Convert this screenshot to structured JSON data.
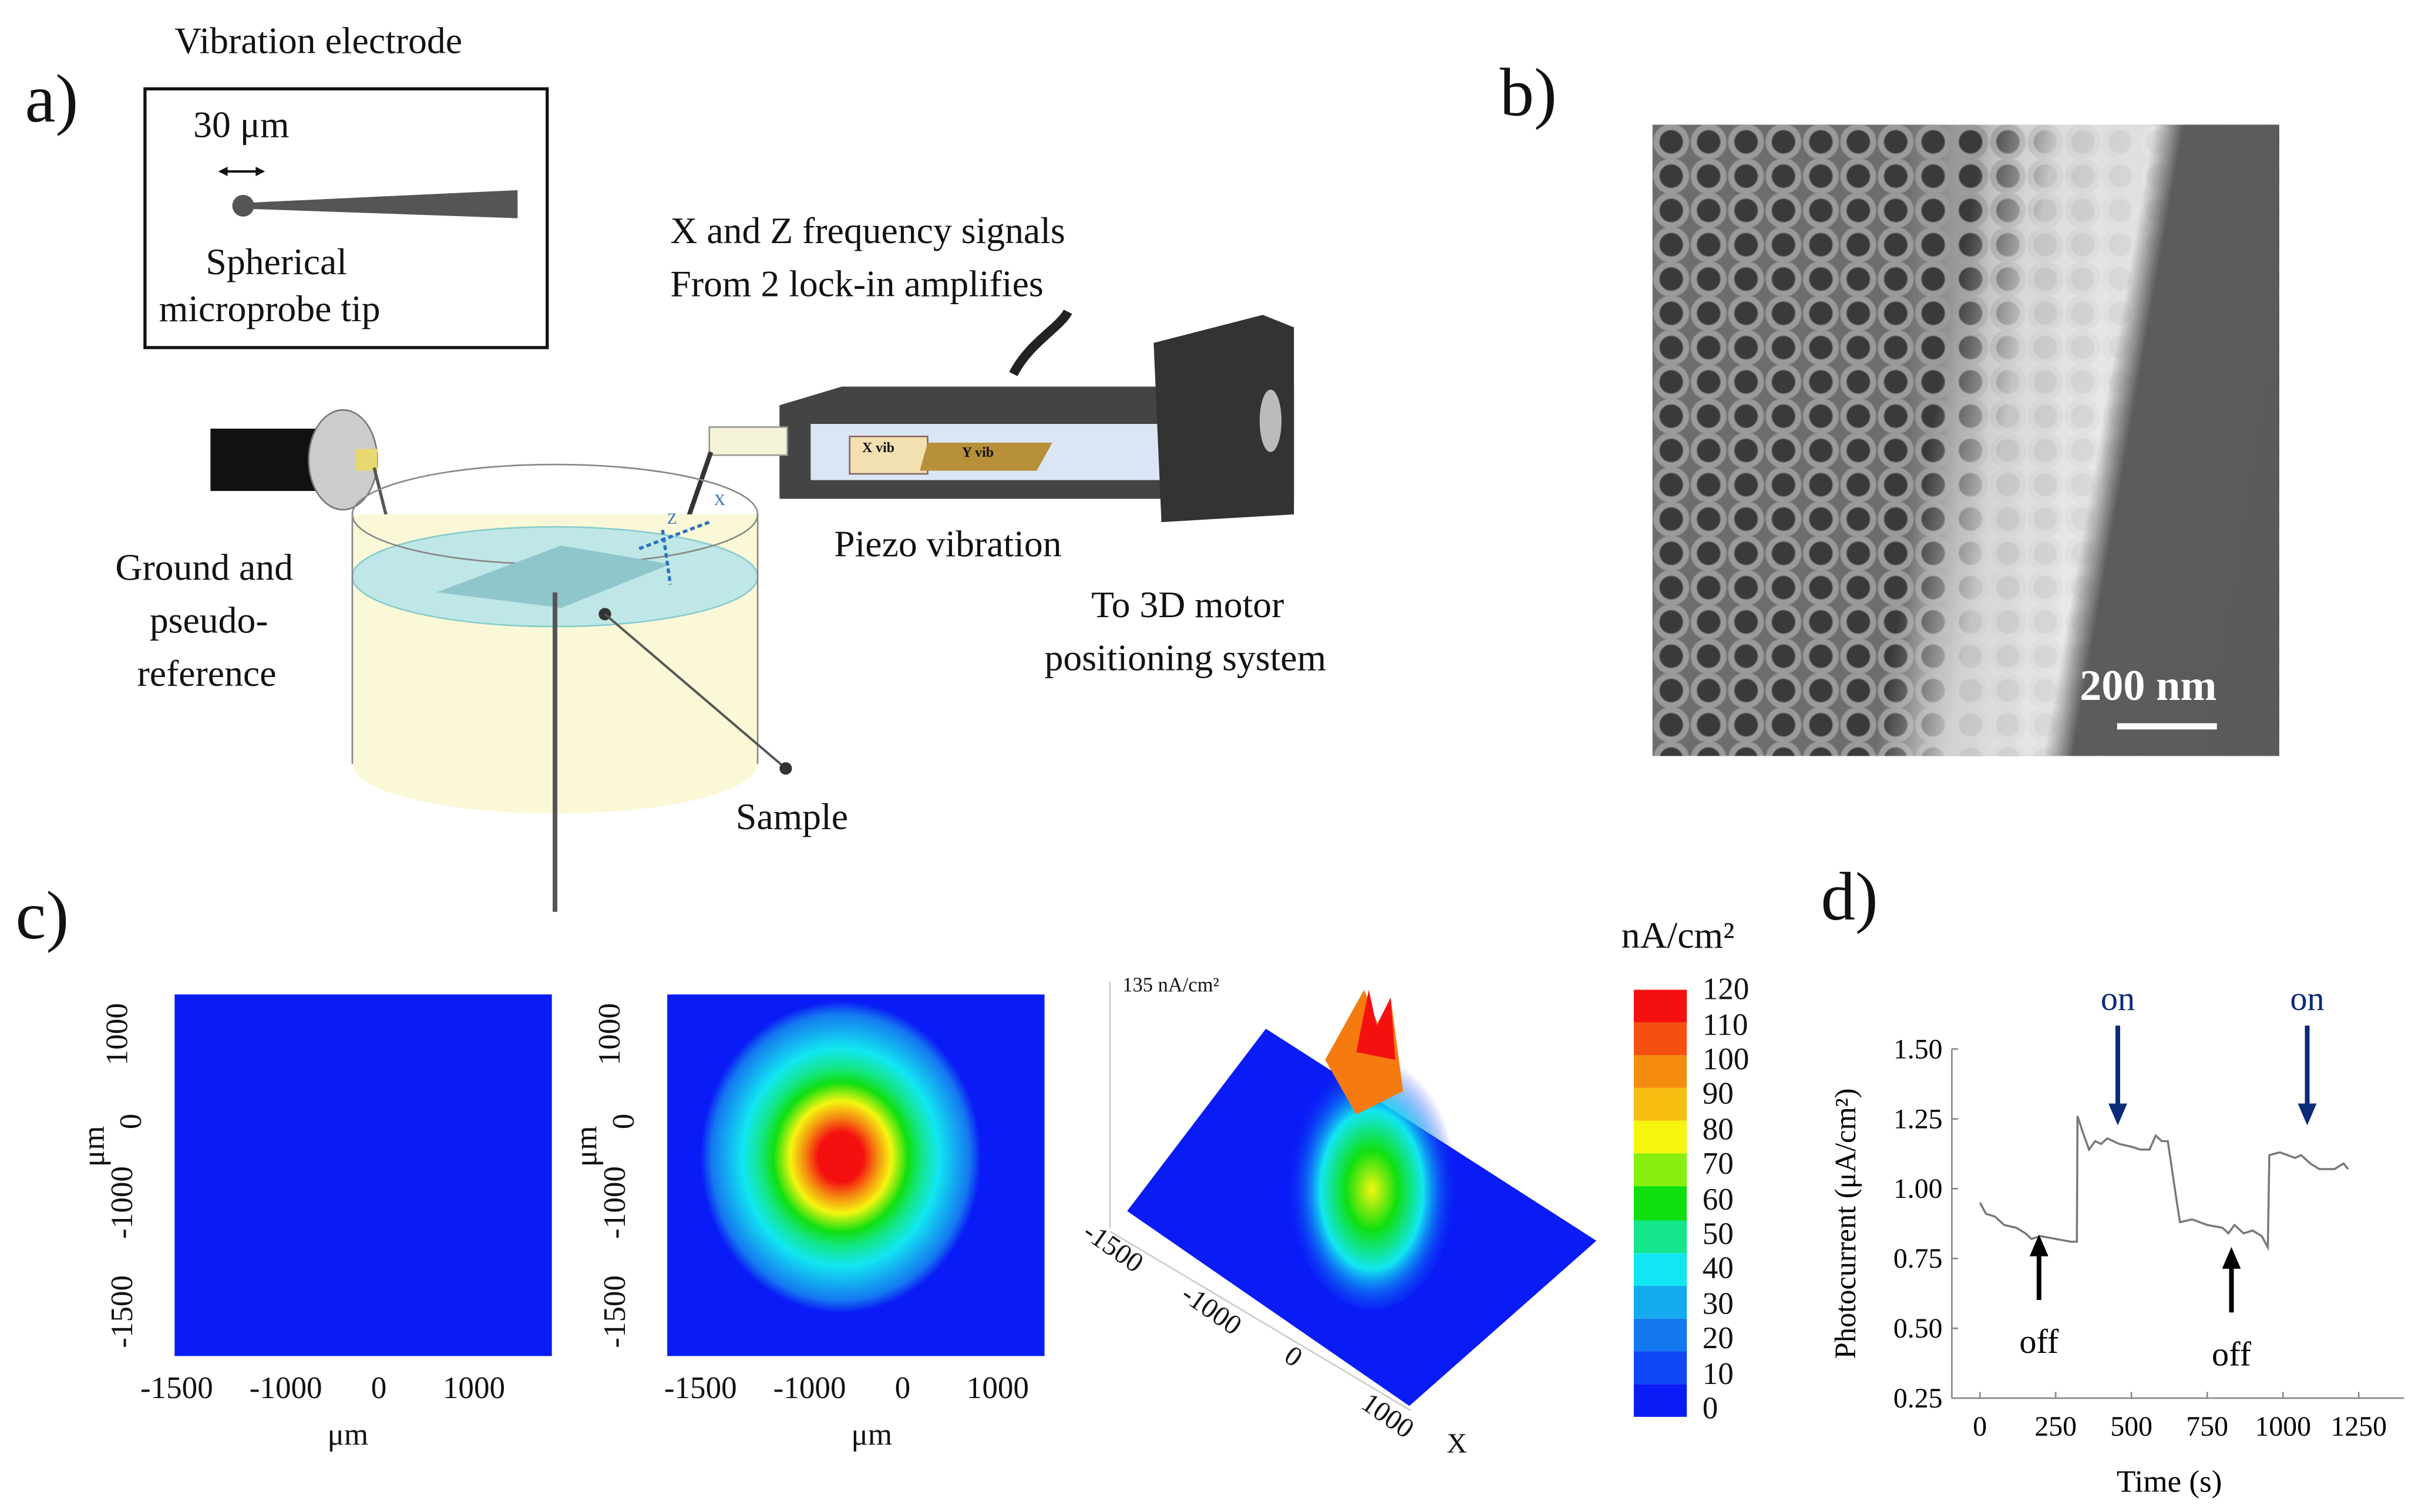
{
  "panel_a": {
    "letter": "a)",
    "inset_title": "Vibration electrode",
    "inset_scale": "30 μm",
    "inset_tip": "Spherical\nmicroprobe tip",
    "inset_tip_1": "Spherical",
    "inset_tip_2": "microprobe tip",
    "signals_1": "X and Z frequency signals",
    "signals_2": "From 2 lock-in amplifies",
    "x_vib": "X vib",
    "y_vib": "Y vib",
    "piezo": "Piezo vibration",
    "motor_1": "To 3D motor",
    "motor_2": "positioning system",
    "ground_1": "Ground and",
    "ground_2": "pseudo-",
    "ground_3": "reference",
    "sample": "Sample",
    "axis_z": "Z",
    "axis_x": "X"
  },
  "panel_b": {
    "letter": "b)",
    "scale_bar": "200 nm"
  },
  "panel_c": {
    "letter": "c)",
    "map_ticks_x": [
      "-1500",
      "-1000",
      "0",
      "1000"
    ],
    "map_ticks_y": [
      "1000",
      "0",
      "-1000",
      "-1500"
    ],
    "axis_unit": "μm",
    "surface_label": "135 nA/cm²",
    "surface_ticks": [
      "-1500",
      "-1000",
      "0",
      "1000"
    ],
    "surface_axis": "X",
    "colorbar_title": "nA/cm²",
    "colorbar_ticks": [
      "0",
      "10",
      "20",
      "30",
      "40",
      "50",
      "60",
      "70",
      "80",
      "90",
      "100",
      "110",
      "120"
    ],
    "colorbar_colors": [
      "#0a1cf5",
      "#0f47f5",
      "#1478f0",
      "#14aaf0",
      "#12e6f2",
      "#14e68c",
      "#10e010",
      "#88f010",
      "#f5f510",
      "#f5be10",
      "#f58c10",
      "#f55010",
      "#f51010"
    ]
  },
  "panel_d": {
    "letter": "d)"
  },
  "chart_data": {
    "type": "line",
    "xlabel": "Time (s)",
    "ylabel": "Photocurrent (μA/cm²)",
    "xlim": [
      0,
      1250
    ],
    "ylim": [
      0.25,
      1.5
    ],
    "x_ticks": [
      "0",
      "250",
      "500",
      "750",
      "1000",
      "1250"
    ],
    "y_ticks": [
      "1.50",
      "1.25",
      "1.00",
      "0.75",
      "0.50",
      "0.25"
    ],
    "series": [
      {
        "color": "#777777",
        "x": [
          0,
          20,
          50,
          80,
          120,
          150,
          170,
          200,
          250,
          300,
          320,
          322,
          340,
          360,
          380,
          400,
          420,
          460,
          500,
          530,
          560,
          580,
          600,
          620,
          650,
          660,
          700,
          750,
          800,
          820,
          840,
          870,
          900,
          930,
          950,
          955,
          990,
          1040,
          1060,
          1090,
          1120,
          1170,
          1200,
          1215
        ],
        "y": [
          0.95,
          0.91,
          0.9,
          0.87,
          0.86,
          0.84,
          0.82,
          0.83,
          0.82,
          0.81,
          0.81,
          1.26,
          1.2,
          1.14,
          1.17,
          1.16,
          1.18,
          1.16,
          1.15,
          1.14,
          1.14,
          1.19,
          1.17,
          1.17,
          0.95,
          0.88,
          0.89,
          0.87,
          0.86,
          0.84,
          0.87,
          0.84,
          0.85,
          0.83,
          0.79,
          1.12,
          1.13,
          1.11,
          1.12,
          1.09,
          1.07,
          1.07,
          1.09,
          1.07
        ]
      }
    ],
    "annotations": [
      {
        "text": "off",
        "x": 195,
        "direction": "up",
        "color": "#000000"
      },
      {
        "text": "on",
        "x": 455,
        "direction": "down",
        "color": "#0b2a7a"
      },
      {
        "text": "off",
        "x": 830,
        "direction": "up",
        "color": "#000000"
      },
      {
        "text": "on",
        "x": 1080,
        "direction": "down",
        "color": "#0b2a7a"
      }
    ]
  }
}
